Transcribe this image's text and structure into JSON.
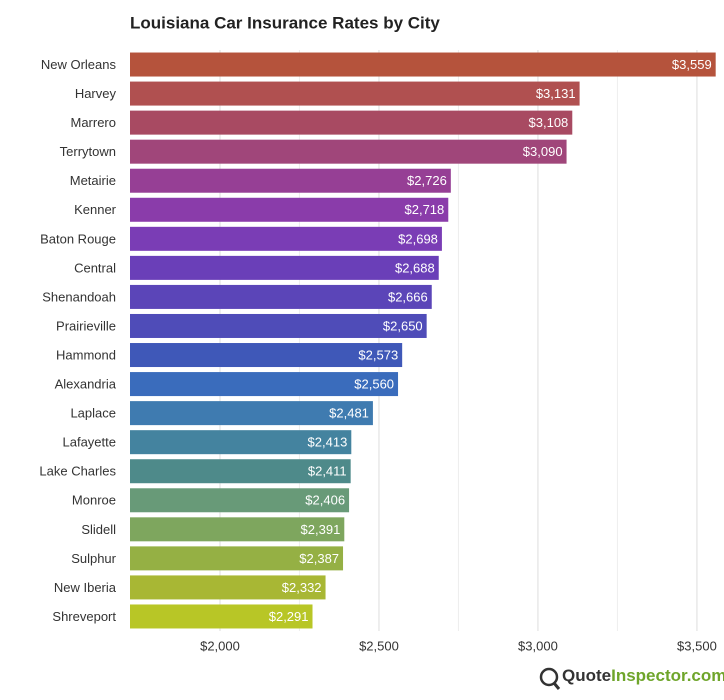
{
  "chart_data": {
    "type": "barh",
    "title": "Louisiana Car Insurance Rates by City",
    "categories": [
      "New Orleans",
      "Harvey",
      "Marrero",
      "Terrytown",
      "Metairie",
      "Kenner",
      "Baton Rouge",
      "Central",
      "Shenandoah",
      "Prairieville",
      "Hammond",
      "Alexandria",
      "Laplace",
      "Lafayette",
      "Lake Charles",
      "Monroe",
      "Slidell",
      "Sulphur",
      "New Iberia",
      "Shreveport"
    ],
    "values": [
      3559,
      3131,
      3108,
      3090,
      2726,
      2718,
      2698,
      2688,
      2666,
      2650,
      2573,
      2560,
      2481,
      2413,
      2411,
      2406,
      2391,
      2387,
      2332,
      2291
    ],
    "value_labels": [
      "$3,559",
      "$3,131",
      "$3,108",
      "$3,090",
      "$2,726",
      "$2,718",
      "$2,698",
      "$2,688",
      "$2,666",
      "$2,650",
      "$2,573",
      "$2,560",
      "$2,481",
      "$2,413",
      "$2,411",
      "$2,406",
      "$2,391",
      "$2,387",
      "$2,332",
      "$2,291"
    ],
    "colors": [
      "#b5533c",
      "#b05050",
      "#a84a62",
      "#a0467a",
      "#963f95",
      "#8a3caa",
      "#7a3db5",
      "#6a3fb8",
      "#5b45b8",
      "#4f4cb8",
      "#3f58b8",
      "#3a6cbc",
      "#3f7bb0",
      "#44839f",
      "#4e8a8a",
      "#689a78",
      "#7ea65e",
      "#95b044",
      "#a8b734",
      "#b8c626"
    ],
    "xlim": [
      1717,
      3560
    ],
    "xticks": [
      {
        "value": 2000,
        "label": "$2,000"
      },
      {
        "value": 2500,
        "label": "$2,500"
      },
      {
        "value": 3000,
        "label": "$3,000"
      },
      {
        "value": 3500,
        "label": "$3,500"
      }
    ],
    "minor_xticks": [
      2250,
      2750,
      3250
    ],
    "grid": true
  },
  "footer": {
    "logo_part1": "Quote",
    "logo_part2": "Inspector.com"
  }
}
